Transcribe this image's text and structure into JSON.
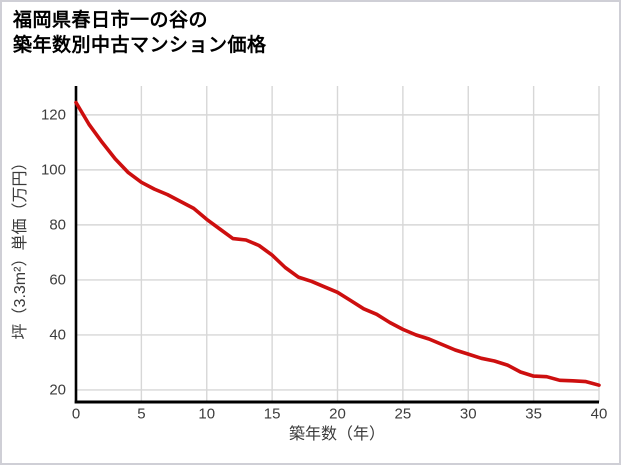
{
  "title": {
    "line1": "福岡県春日市一の谷の",
    "line2": "築年数別中古マンション価格"
  },
  "chart_data": {
    "type": "line",
    "title": "福岡県春日市一の谷の築年数別中古マンション価格",
    "xlabel": "築年数（年）",
    "ylabel": "坪（3.3m²）単価（万円）",
    "x": [
      0,
      1,
      2,
      3,
      4,
      5,
      6,
      7,
      8,
      9,
      10,
      11,
      12,
      13,
      14,
      15,
      16,
      17,
      18,
      19,
      20,
      21,
      22,
      23,
      24,
      25,
      26,
      27,
      28,
      29,
      30,
      31,
      32,
      33,
      34,
      35,
      36,
      37,
      38,
      39,
      40
    ],
    "y": [
      124.5,
      116.5,
      110,
      104,
      99,
      95.5,
      93,
      91,
      88.5,
      86,
      82,
      78.5,
      75,
      74.5,
      72.5,
      69,
      64.5,
      61,
      59.5,
      57.5,
      55.5,
      52.5,
      49.5,
      47.5,
      44.5,
      42,
      40,
      38.5,
      36.5,
      34.5,
      33,
      31.5,
      30.5,
      29,
      26.5,
      25,
      24.8,
      23.5,
      23.3,
      23,
      21.7
    ],
    "x_ticks": [
      0,
      5,
      10,
      15,
      20,
      25,
      30,
      35,
      40
    ],
    "y_ticks": [
      20,
      40,
      60,
      80,
      100,
      120
    ],
    "xlim": [
      0,
      40
    ],
    "ylim": [
      15.6,
      130.5
    ],
    "grid": true,
    "legend": "none",
    "colors": {
      "line": "#cd0f0f",
      "axis": "#000000",
      "grid": "#d7d7d7",
      "tick_label": "#3d3d3d",
      "title_text": "#000000",
      "frame_border": "#cfcfd6",
      "background": "#ffffff"
    }
  }
}
